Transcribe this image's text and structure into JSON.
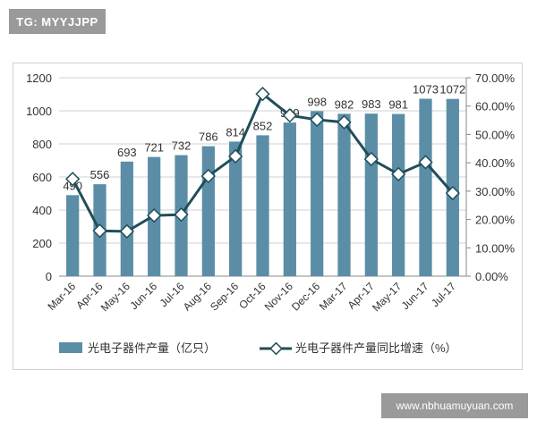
{
  "watermarks": {
    "top_left": "TG: MYYJJPP",
    "bottom_right": "www.nbhuamuyuan.com"
  },
  "colors": {
    "bar": "#5b8ea6",
    "line": "#1f4e5a",
    "grid": "#d0d0d0"
  },
  "chart_data": {
    "type": "bar+line",
    "categories": [
      "Mar-16",
      "Apr-16",
      "May-16",
      "Jun-16",
      "Jul-16",
      "Aug-16",
      "Sep-16",
      "Oct-16",
      "Nov-16",
      "Dec-16",
      "Mar-17",
      "Apr-17",
      "May-17",
      "Jun-17",
      "Jul-17"
    ],
    "series": [
      {
        "name": "光电子器件产量（亿只）",
        "type": "bar",
        "axis": "left",
        "values": [
          490,
          556,
          693,
          721,
          732,
          786,
          814,
          852,
          929,
          998,
          982,
          983,
          981,
          1073,
          1072
        ]
      },
      {
        "name": "光电子器件产量同比增速（%）",
        "type": "line",
        "axis": "right",
        "values": [
          34.3,
          16.0,
          15.8,
          21.4,
          21.7,
          35.3,
          42.3,
          64.3,
          56.7,
          55.2,
          54.3,
          41.3,
          36.0,
          40.2,
          29.3
        ]
      }
    ],
    "left_axis": {
      "ylim": [
        0,
        1200
      ],
      "ticks": [
        "0",
        "200",
        "400",
        "600",
        "800",
        "1000",
        "1200"
      ]
    },
    "right_axis": {
      "ylim": [
        0,
        70
      ],
      "ticks": [
        "0.00%",
        "10.00%",
        "20.00%",
        "30.00%",
        "40.00%",
        "50.00%",
        "60.00%",
        "70.00%"
      ]
    },
    "grid": true,
    "legend_position": "bottom"
  }
}
